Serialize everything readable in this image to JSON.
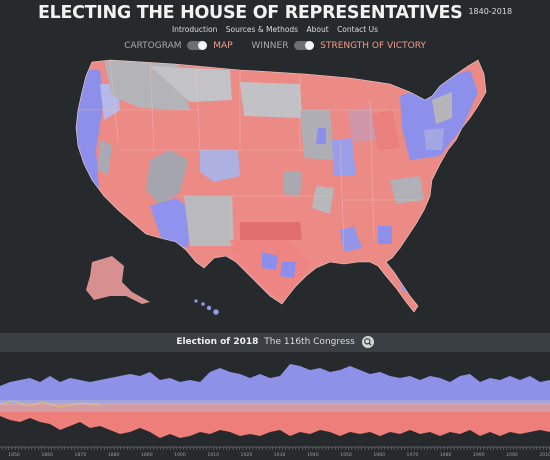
{
  "header": {
    "title": "ELECTING THE HOUSE OF REPRESENTATIVES",
    "years": "1840-2018"
  },
  "nav": {
    "items": [
      "Introduction",
      "Sources & Methods",
      "About",
      "Contact Us"
    ]
  },
  "toggles": {
    "view_off": "CARTOGRAM",
    "view_on": "MAP",
    "mode_off": "WINNER",
    "mode_on": "STRENGTH OF VICTORY"
  },
  "election": {
    "label": "Election of 2018",
    "congress": "The 116th Congress",
    "search_icon": "search-icon"
  },
  "timeline": {
    "tick_labels": [
      "1850",
      "1860",
      "1870",
      "1880",
      "1890",
      "1900",
      "1910",
      "1920",
      "1930",
      "1940",
      "1950",
      "1960",
      "1970",
      "1980",
      "1990",
      "2000",
      "2010"
    ]
  },
  "colors": {
    "background": "#262a2d",
    "democrat": "#8b8ff0",
    "republican": "#ef7b79",
    "neutral": "#b8b8bc",
    "accent": "#f19c8a",
    "election_bar": "#3a3f43"
  }
}
